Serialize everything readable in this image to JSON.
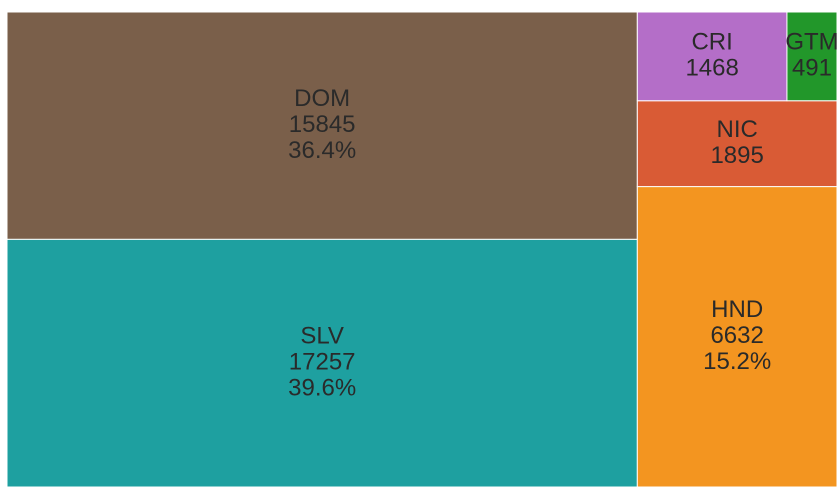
{
  "chart_data": {
    "type": "treemap",
    "categories": [
      "DOM",
      "SLV",
      "HND",
      "NIC",
      "CRI",
      "GTM"
    ],
    "values": [
      15845,
      17257,
      6632,
      1895,
      1468,
      491
    ],
    "percent_labels": [
      "36.4%",
      "39.6%",
      "15.2%",
      null,
      null,
      null
    ],
    "colors": [
      "#7a5f4a",
      "#1ea0a0",
      "#f39520",
      "#d95b35",
      "#b46ec8",
      "#22972a"
    ]
  }
}
